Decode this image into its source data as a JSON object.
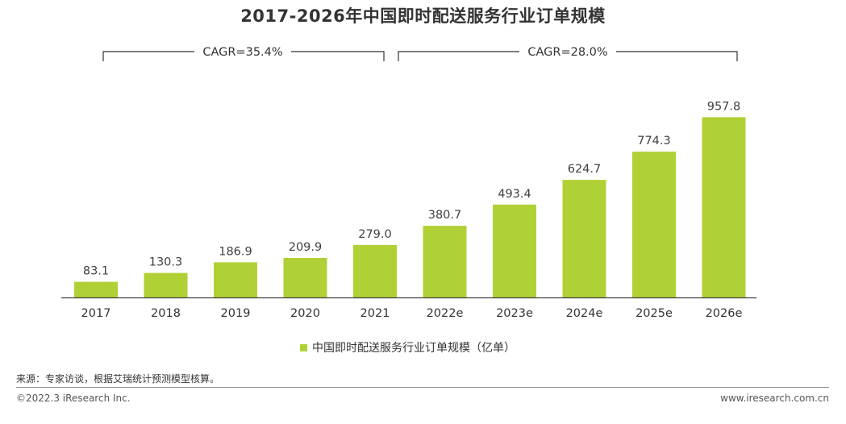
{
  "chart_data": {
    "type": "bar",
    "title": "2017-2026年中国即时配送服务行业订单规模",
    "categories": [
      "2017",
      "2018",
      "2019",
      "2020",
      "2021",
      "2022e",
      "2023e",
      "2024e",
      "2025e",
      "2026e"
    ],
    "values": [
      83.1,
      130.3,
      186.9,
      209.9,
      279.0,
      380.7,
      493.4,
      624.7,
      774.3,
      957.8
    ],
    "value_labels": [
      "83.1",
      "130.3",
      "186.9",
      "209.9",
      "279.0",
      "380.7",
      "493.4",
      "624.7",
      "774.3",
      "957.8"
    ],
    "series_name": "中国即时配送服务行业订单规模（亿单）",
    "xlabel": "",
    "ylabel": "",
    "ylim": [
      0,
      1000
    ],
    "grid": false,
    "legend_position": "bottom-center",
    "bar_color": "#b0d136",
    "annotations": [
      {
        "text": "CAGR=35.4%",
        "from": "2017",
        "to": "2021"
      },
      {
        "text": "CAGR=28.0%",
        "from": "2022e",
        "to": "2026e"
      }
    ]
  },
  "footer": {
    "source": "来源：专家访谈，根据艾瑞统计预测模型核算。",
    "copyright": "©2022.3 iResearch Inc.",
    "website": "www.iresearch.com.cn"
  }
}
